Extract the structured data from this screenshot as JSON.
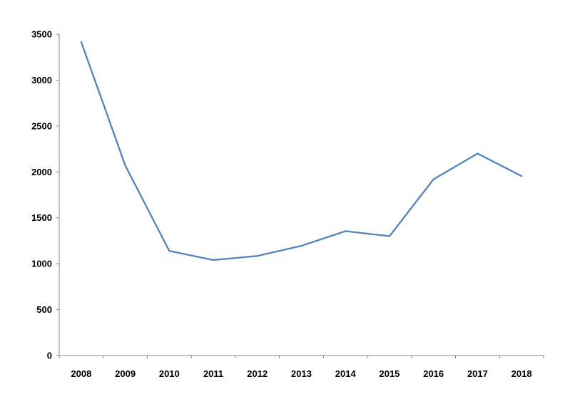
{
  "chart_data": {
    "type": "line",
    "title": "",
    "xlabel": "",
    "ylabel": "",
    "categories": [
      "2008",
      "2009",
      "2010",
      "2011",
      "2012",
      "2013",
      "2014",
      "2015",
      "2016",
      "2017",
      "2018"
    ],
    "series": [
      {
        "values": [
          3415,
          2070,
          1140,
          1040,
          1085,
          1195,
          1355,
          1300,
          1920,
          2200,
          1955
        ]
      }
    ],
    "ylim": [
      0,
      3500
    ],
    "yticks": [
      "0",
      "500",
      "1000",
      "1500",
      "2000",
      "2500",
      "3000",
      "3500"
    ],
    "grid": false,
    "legend": "none",
    "line_color": "#4F81BD",
    "axis_color": "#868686"
  }
}
